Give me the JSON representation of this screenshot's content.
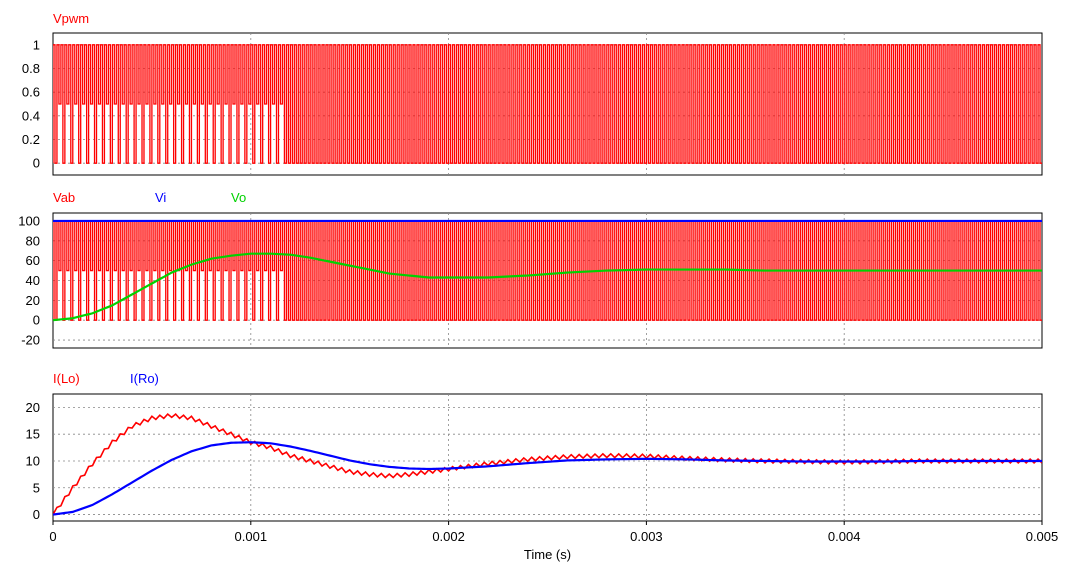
{
  "chart_data": [
    {
      "type": "line",
      "panel": "top",
      "title": "",
      "xlim": [
        0,
        0.005
      ],
      "ylim": [
        -0.1,
        1.1
      ],
      "yticks": [
        0,
        0.2,
        0.4,
        0.6,
        0.8,
        1
      ],
      "ytick_labels": [
        "0",
        "0.2",
        "0.4",
        "0.6",
        "0.8",
        "1"
      ],
      "grid": true,
      "legend": "top-left",
      "series": [
        {
          "name": "Vpwm",
          "color": "#ff0000",
          "kind": "pwm",
          "period": 2e-05,
          "high": 1,
          "low": 0,
          "mid_level": 0.5,
          "mid_level_until": 0.00116
        }
      ]
    },
    {
      "type": "line",
      "panel": "middle",
      "title": "",
      "xlim": [
        0,
        0.005
      ],
      "ylim": [
        -28,
        108
      ],
      "yticks": [
        -20,
        0,
        20,
        40,
        60,
        80,
        100
      ],
      "ytick_labels": [
        "-20",
        "0",
        "20",
        "40",
        "60",
        "80",
        "100"
      ],
      "grid": true,
      "legend": "top-left",
      "series": [
        {
          "name": "Vab",
          "color": "#ff0000",
          "kind": "pwm",
          "period": 2e-05,
          "high": 100,
          "low": 0,
          "mid_level": 50,
          "mid_level_until": 0.00116
        },
        {
          "name": "Vi",
          "color": "#0000ff",
          "x": [
            0,
            0.005
          ],
          "values": [
            100,
            100
          ]
        },
        {
          "name": "Vo",
          "color": "#00d200",
          "x": [
            0,
            0.0001,
            0.0002,
            0.0003,
            0.0004,
            0.0005,
            0.0006,
            0.0007,
            0.0008,
            0.0009,
            0.001,
            0.0011,
            0.0012,
            0.0013,
            0.0014,
            0.0015,
            0.0016,
            0.0017,
            0.0018,
            0.0019,
            0.002,
            0.0022,
            0.0024,
            0.0026,
            0.0028,
            0.003,
            0.0032,
            0.0034,
            0.0036,
            0.0038,
            0.004,
            0.0042,
            0.0044,
            0.0046,
            0.0048,
            0.005
          ],
          "values": [
            0,
            2,
            7,
            15,
            26,
            37,
            48,
            56,
            62,
            65,
            67,
            67,
            66,
            63,
            59,
            55,
            51,
            47,
            45,
            43,
            43,
            43,
            45,
            48,
            50,
            51,
            51,
            51,
            50,
            50,
            50,
            50,
            50,
            50,
            50,
            50
          ]
        }
      ]
    },
    {
      "type": "line",
      "panel": "bottom",
      "title": "",
      "xlim": [
        0,
        0.005
      ],
      "ylim": [
        -1.2,
        22.5
      ],
      "yticks": [
        0,
        5,
        10,
        15,
        20
      ],
      "ytick_labels": [
        "0",
        "5",
        "10",
        "15",
        "20"
      ],
      "xticks": [
        0,
        0.001,
        0.002,
        0.003,
        0.004,
        0.005
      ],
      "xtick_labels": [
        "0",
        "0.001",
        "0.002",
        "0.003",
        "0.004",
        "0.005"
      ],
      "xlabel": "Time (s)",
      "grid": true,
      "legend": "top-left",
      "series": [
        {
          "name": "I(Lo)",
          "color": "#ff0000",
          "ripple": 0.7,
          "ripple_period": 4e-05,
          "x": [
            0,
            0.0001,
            0.0002,
            0.0003,
            0.0004,
            0.0005,
            0.0006,
            0.0007,
            0.0008,
            0.0009,
            0.001,
            0.0011,
            0.0012,
            0.0013,
            0.0014,
            0.0015,
            0.0016,
            0.0017,
            0.0018,
            0.0019,
            0.002,
            0.0022,
            0.0024,
            0.0026,
            0.0028,
            0.003,
            0.0032,
            0.0034,
            0.0036,
            0.0038,
            0.004,
            0.0042,
            0.0044,
            0.0046,
            0.0048,
            0.005
          ],
          "values": [
            0,
            5,
            9.5,
            13.5,
            16.5,
            18,
            18.5,
            18,
            16.5,
            15,
            13.5,
            12.5,
            11,
            10,
            9,
            8,
            7.5,
            7.2,
            7.5,
            8,
            8.5,
            9.5,
            10.3,
            10.8,
            11,
            10.9,
            10.5,
            10.2,
            10,
            9.9,
            9.8,
            9.9,
            10,
            10,
            10,
            10
          ]
        },
        {
          "name": "I(Ro)",
          "color": "#0000ff",
          "x": [
            0,
            0.0001,
            0.0002,
            0.0003,
            0.0004,
            0.0005,
            0.0006,
            0.0007,
            0.0008,
            0.0009,
            0.001,
            0.0011,
            0.0012,
            0.0013,
            0.0014,
            0.0015,
            0.0016,
            0.0017,
            0.0018,
            0.0019,
            0.002,
            0.0022,
            0.0024,
            0.0026,
            0.0028,
            0.003,
            0.0032,
            0.0034,
            0.0036,
            0.0038,
            0.004,
            0.0042,
            0.0044,
            0.0046,
            0.0048,
            0.005
          ],
          "values": [
            0,
            0.5,
            1.8,
            3.8,
            6,
            8.2,
            10.2,
            11.8,
            12.9,
            13.4,
            13.5,
            13.3,
            12.7,
            11.9,
            11,
            10.1,
            9.4,
            8.9,
            8.6,
            8.5,
            8.6,
            9,
            9.6,
            10.1,
            10.3,
            10.4,
            10.3,
            10.1,
            10,
            9.9,
            9.9,
            9.9,
            10,
            10,
            10,
            10
          ]
        }
      ]
    }
  ]
}
